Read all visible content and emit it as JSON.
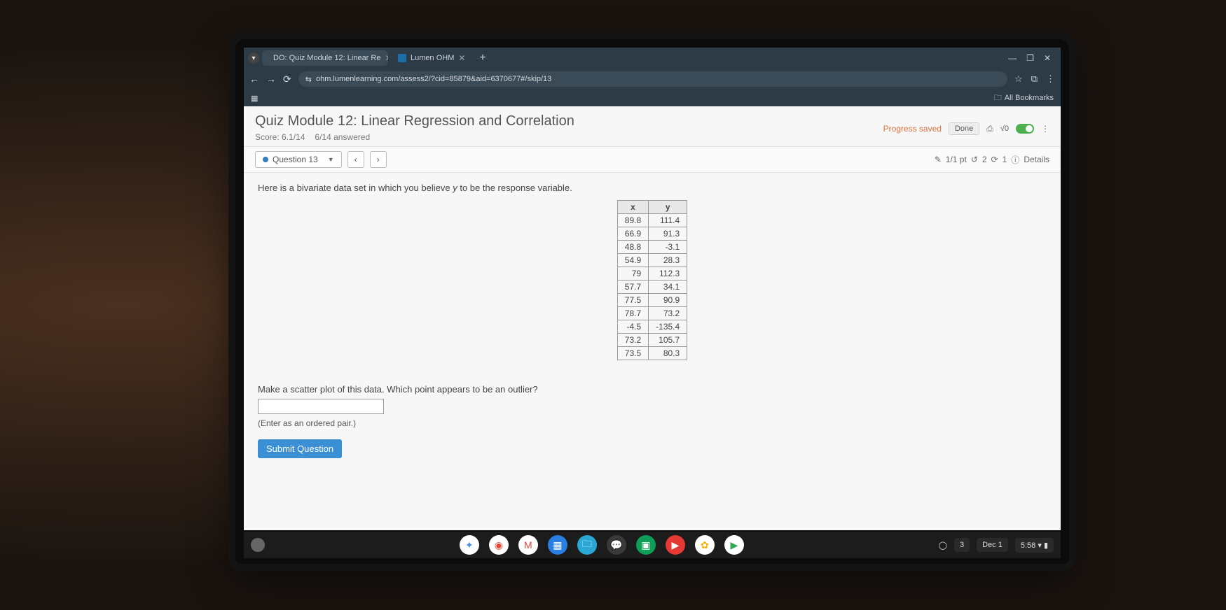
{
  "browser": {
    "tabs": [
      {
        "title": "DO: Quiz Module 12: Linear Re",
        "favicon_color": "#c0392b"
      },
      {
        "title": "Lumen OHM",
        "favicon_color": "#1c6ea4"
      }
    ],
    "new_tab_label": "+",
    "window_min": "—",
    "window_max": "❐",
    "window_close": "✕",
    "nav_back": "←",
    "nav_fwd": "→",
    "nav_reload": "⟳",
    "url_lock": "⇆",
    "url": "ohm.lumenlearning.com/assess2/?cid=85879&aid=6370677#/skip/13",
    "star": "☆",
    "ext_icon": "⧉",
    "menu": "⋮",
    "apps_icon": "▦",
    "all_bookmarks": "All Bookmarks",
    "bookmark_folder_icon": "🗀"
  },
  "page": {
    "title": "Quiz Module 12: Linear Regression and Correlation",
    "score_label": "Score: 6.1/14",
    "answered_label": "6/14 answered",
    "progress_saved": "Progress saved",
    "done": "Done",
    "print_icon": "⎙",
    "formula_icon": "√0",
    "menu_icon": "⋮"
  },
  "question_selector": {
    "label": "Question 13",
    "caret": "▼",
    "prev": "‹",
    "next": "›",
    "meta_check": "✎",
    "meta_points": "1/1 pt",
    "meta_tries_icon": "↺",
    "meta_tries": "2",
    "meta_regen_icon": "⟳",
    "meta_regen": "1",
    "meta_info_icon": "ⓘ",
    "meta_details": "Details"
  },
  "question": {
    "prompt_pre": "Here is a bivariate data set in which you believe ",
    "prompt_var": "y",
    "prompt_post": " to be the response variable.",
    "table": {
      "columns": [
        "x",
        "y"
      ],
      "rows": [
        [
          "89.8",
          "111.4"
        ],
        [
          "66.9",
          "91.3"
        ],
        [
          "48.8",
          "-3.1"
        ],
        [
          "54.9",
          "28.3"
        ],
        [
          "79",
          "112.3"
        ],
        [
          "57.7",
          "34.1"
        ],
        [
          "77.5",
          "90.9"
        ],
        [
          "78.7",
          "73.2"
        ],
        [
          "-4.5",
          "-135.4"
        ],
        [
          "73.2",
          "105.7"
        ],
        [
          "73.5",
          "80.3"
        ]
      ]
    },
    "prompt2": "Make a scatter plot of this data. Which point appears to be an outlier?",
    "hint": "(Enter as an ordered pair.)",
    "submit": "Submit Question"
  },
  "taskbar": {
    "icons": [
      {
        "bg": "#ffffff",
        "glyph": "✦",
        "fg": "#4a90e2"
      },
      {
        "bg": "#ffffff",
        "glyph": "◉",
        "fg": "#ea4335"
      },
      {
        "bg": "#ffffff",
        "glyph": "M",
        "fg": "#ea4335"
      },
      {
        "bg": "#2a7de1",
        "glyph": "▦",
        "fg": "#ffffff"
      },
      {
        "bg": "#2aa7d4",
        "glyph": "🗀",
        "fg": "#ffffff"
      },
      {
        "bg": "#3a3a3a",
        "glyph": "💬",
        "fg": "#ffffff"
      },
      {
        "bg": "#0f9d58",
        "glyph": "▣",
        "fg": "#ffffff"
      },
      {
        "bg": "#e53935",
        "glyph": "▶",
        "fg": "#ffffff"
      },
      {
        "bg": "#ffffff",
        "glyph": "✿",
        "fg": "#f4b400"
      },
      {
        "bg": "#ffffff",
        "glyph": "▶",
        "fg": "#34a853"
      }
    ],
    "notif": "◯",
    "notif_count": "3",
    "date": "Dec 1",
    "time": "5:58",
    "wifi": "▾",
    "battery": "▮"
  }
}
